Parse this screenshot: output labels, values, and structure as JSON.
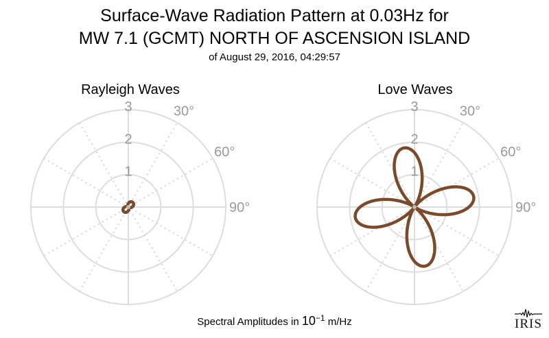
{
  "header": {
    "title_line1": "Surface-Wave Radiation Pattern at 0.03Hz for",
    "title_line2": "MW 7.1 (GCMT) NORTH OF ASCENSION ISLAND",
    "subtitle": "of August 29, 2016, 04:29:57"
  },
  "footer": {
    "prefix": "Spectral Amplitudes in ",
    "base": "10",
    "exponent": "−1",
    "unit": " m/Hz"
  },
  "logo": {
    "text": "IRIS"
  },
  "colors": {
    "pattern": "#7a4a2c",
    "grid": "#dddddd",
    "tick_text": "#9a9a9a"
  },
  "chart_data": [
    {
      "type": "polar",
      "title": "Rayleigh Waves",
      "r_ticks": [
        "1",
        "2",
        "3"
      ],
      "r_max": 3,
      "angle_ticks": [
        "30°",
        "60°",
        "90°"
      ],
      "grid": true,
      "series": [
        {
          "pattern": "two-lobe",
          "lobes": [
            {
              "azimuth_deg": 45,
              "amplitude": 0.2
            },
            {
              "azimuth_deg": 225,
              "amplitude": 0.2
            }
          ],
          "color": "#7a4a2c"
        }
      ]
    },
    {
      "type": "polar",
      "title": "Love Waves",
      "r_ticks": [
        "1",
        "2",
        "3"
      ],
      "r_max": 3,
      "angle_ticks": [
        "30°",
        "60°",
        "90°"
      ],
      "grid": true,
      "series": [
        {
          "pattern": "four-lobe",
          "lobes": [
            {
              "azimuth_deg": -10,
              "amplitude": 1.85
            },
            {
              "azimuth_deg": 80,
              "amplitude": 1.85
            },
            {
              "azimuth_deg": 170,
              "amplitude": 1.85
            },
            {
              "azimuth_deg": 260,
              "amplitude": 1.85
            }
          ],
          "color": "#7a4a2c"
        }
      ]
    }
  ]
}
